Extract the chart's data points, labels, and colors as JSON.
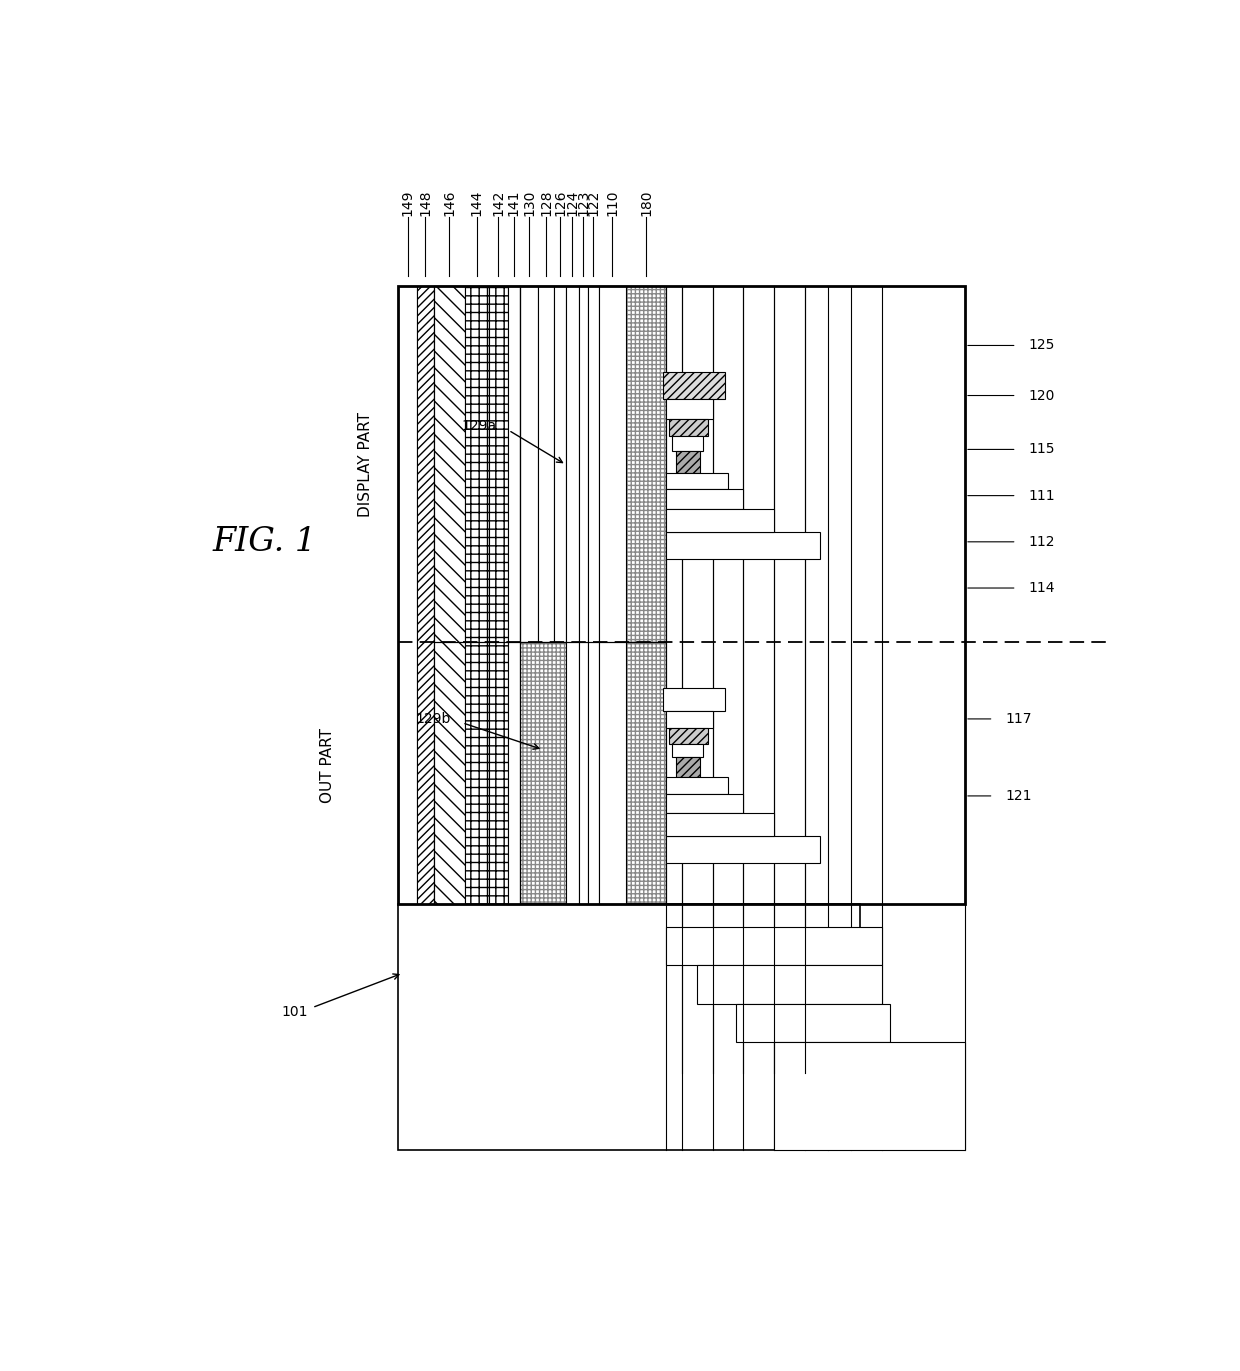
{
  "fig_label": "FIG. 1",
  "bg": "#ffffff",
  "top_refs": [
    "149",
    "148",
    "146",
    "144",
    "142",
    "141",
    "130",
    "128",
    "126",
    "124",
    "123",
    "122",
    "110",
    "180"
  ],
  "right_refs_upper": [
    "125",
    "120",
    "115",
    "111",
    "112",
    "114"
  ],
  "right_refs_lower": [
    "117",
    "121"
  ],
  "inner_refs": [
    "129a",
    "129b"
  ],
  "bottom_ref": "101"
}
